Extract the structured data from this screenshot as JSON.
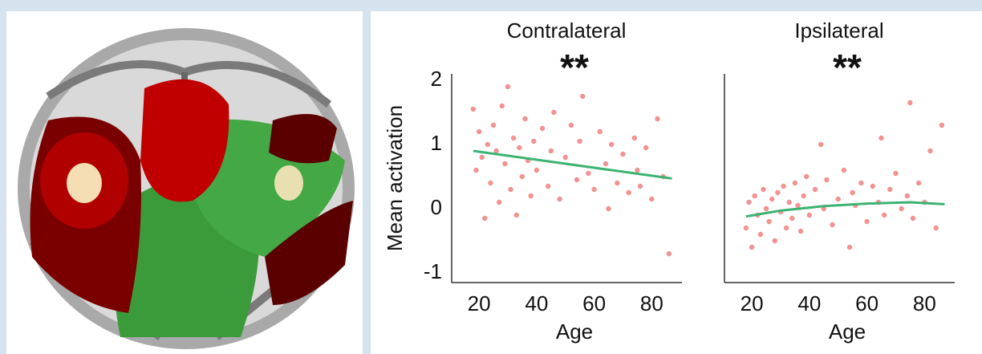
{
  "chart_data": [
    {
      "type": "scatter",
      "title": "Contralateral",
      "annotation": "**",
      "x_label": "Age",
      "y_label": "Mean activation",
      "xlim": [
        10.5,
        90.5
      ],
      "ylim": [
        -1.15,
        2.1
      ],
      "xticks": [
        20,
        40,
        60,
        80
      ],
      "yticks": [
        -1,
        0,
        1,
        2
      ],
      "series": [
        {
          "color": "#f08080",
          "x": [
            18,
            19,
            20,
            21,
            22,
            23,
            24,
            25,
            26,
            27,
            28,
            29,
            30,
            31,
            32,
            33,
            34,
            35,
            36,
            37,
            38,
            39,
            40,
            42,
            44,
            45,
            46,
            48,
            50,
            52,
            54,
            55,
            56,
            58,
            60,
            62,
            64,
            65,
            66,
            68,
            70,
            72,
            74,
            75,
            76,
            78,
            80,
            82,
            84,
            86
          ],
          "values": [
            1.55,
            0.6,
            1.2,
            0.8,
            -0.15,
            1.0,
            0.4,
            1.3,
            0.9,
            0.1,
            1.6,
            0.7,
            1.9,
            0.3,
            1.1,
            -0.1,
            0.95,
            0.5,
            1.4,
            0.75,
            0.2,
            1.05,
            0.6,
            1.25,
            0.35,
            0.9,
            1.5,
            0.15,
            0.8,
            1.3,
            0.45,
            1.05,
            1.75,
            0.55,
            0.3,
            1.2,
            0.7,
            0.0,
            1.0,
            0.4,
            0.85,
            0.25,
            1.1,
            0.6,
            0.35,
            0.95,
            0.15,
            1.4,
            0.5,
            -0.7
          ]
        },
        {
          "type": "line",
          "color": "#3cb371",
          "x": [
            18,
            87
          ],
          "values": [
            0.9,
            0.47
          ]
        }
      ]
    },
    {
      "type": "scatter",
      "title": "Ipsilateral",
      "annotation": "**",
      "x_label": "Age",
      "xlim": [
        10.5,
        90.5
      ],
      "ylim": [
        -1.15,
        2.1
      ],
      "xticks": [
        20,
        40,
        60,
        80
      ],
      "series": [
        {
          "color": "#f08080",
          "x": [
            18,
            19,
            20,
            21,
            22,
            23,
            24,
            25,
            26,
            27,
            28,
            29,
            30,
            31,
            32,
            33,
            34,
            35,
            36,
            37,
            38,
            39,
            40,
            42,
            44,
            45,
            46,
            48,
            50,
            52,
            54,
            55,
            56,
            58,
            60,
            62,
            64,
            65,
            66,
            68,
            70,
            72,
            74,
            75,
            76,
            78,
            80,
            82,
            84,
            86
          ],
          "values": [
            -0.3,
            0.1,
            -0.6,
            0.2,
            -0.1,
            -0.4,
            0.3,
            0.0,
            -0.2,
            0.15,
            -0.5,
            0.25,
            -0.05,
            0.35,
            -0.3,
            0.1,
            -0.15,
            0.4,
            0.05,
            -0.35,
            0.2,
            0.5,
            -0.1,
            0.3,
            1.0,
            0.0,
            0.45,
            -0.25,
            0.15,
            0.6,
            -0.6,
            0.25,
            0.05,
            0.4,
            -0.2,
            0.35,
            0.1,
            1.1,
            -0.1,
            0.3,
            0.55,
            0.0,
            0.2,
            1.65,
            -0.15,
            0.4,
            0.1,
            0.9,
            -0.3,
            1.3
          ]
        },
        {
          "type": "line",
          "color": "#3cb371",
          "x": [
            18,
            30,
            45,
            60,
            75,
            87
          ],
          "values": [
            -0.12,
            -0.03,
            0.04,
            0.08,
            0.1,
            0.07
          ]
        }
      ]
    }
  ]
}
